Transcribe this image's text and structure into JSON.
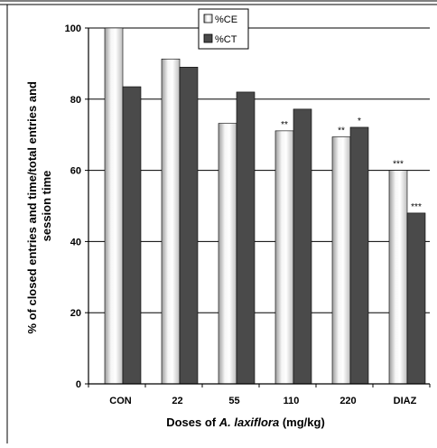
{
  "chart_data": {
    "type": "bar",
    "categories": [
      "CON",
      "22",
      "55",
      "110",
      "220",
      "DIAZ"
    ],
    "series": [
      {
        "name": "%CE",
        "values": [
          100,
          91.3,
          73.2,
          71.1,
          69.4,
          60.0
        ],
        "color": "#ececec",
        "gradient": true
      },
      {
        "name": "%CT",
        "values": [
          83.5,
          89.0,
          82.0,
          77.2,
          72.1,
          48.0
        ],
        "color": "#4a4a4a",
        "gradient": false
      }
    ],
    "xlabel_parts": [
      {
        "text": "Doses of ",
        "italic": false
      },
      {
        "text": "A. laxiflora",
        "italic": true
      },
      {
        "text": " (mg/kg)",
        "italic": false
      }
    ],
    "ylabel_lines": [
      "% of closed entries and time/total entries and",
      "session time"
    ],
    "ylim": [
      0,
      100
    ],
    "yticks": [
      0,
      20,
      40,
      60,
      80,
      100
    ],
    "grid": true,
    "legend_position": "top-center",
    "annotations": [
      {
        "category_index": 3,
        "series_index": 0,
        "text": "**"
      },
      {
        "category_index": 4,
        "series_index": 0,
        "text": "**"
      },
      {
        "category_index": 4,
        "series_index": 1,
        "text": "*"
      },
      {
        "category_index": 5,
        "series_index": 0,
        "text": "***"
      },
      {
        "category_index": 5,
        "series_index": 1,
        "text": "***"
      }
    ]
  }
}
